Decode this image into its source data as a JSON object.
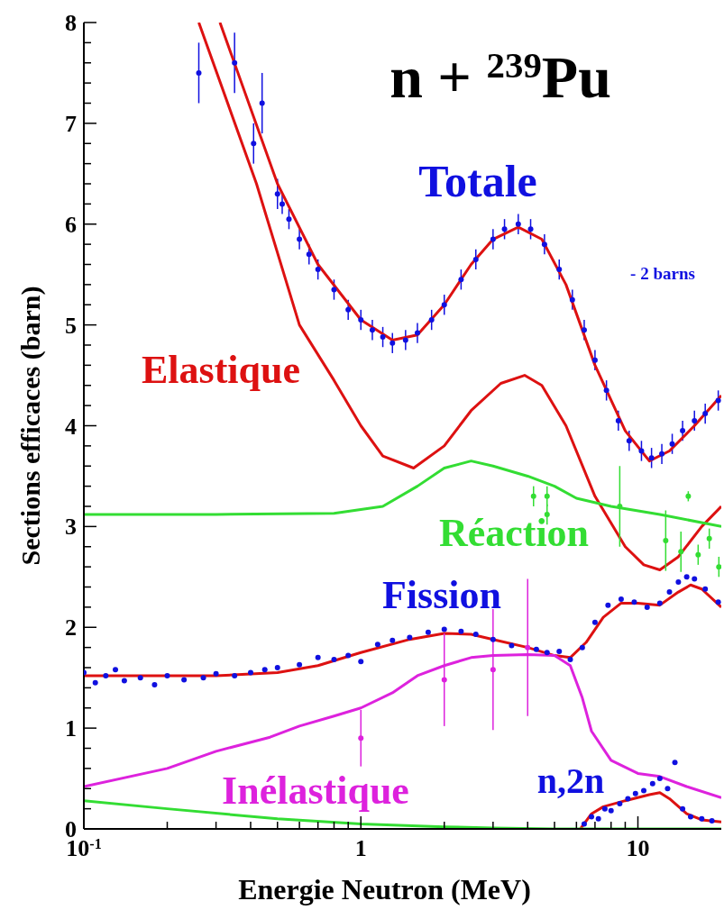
{
  "chart_data": {
    "type": "line",
    "title": "n + $^{239}$Pu",
    "xlabel": "Energie Neutron (MeV)",
    "ylabel": "Sections efficaces (barn)",
    "annotations": [
      "- 2 barns"
    ],
    "log": "x",
    "xlim": [
      0.1,
      20
    ],
    "ylim": [
      0,
      8
    ],
    "xticks": [
      {
        "value": 0.1,
        "label": "10$^{-1}$"
      },
      {
        "value": 0.2,
        "label": null
      },
      {
        "value": 0.3,
        "label": null
      },
      {
        "value": 0.4,
        "label": null
      },
      {
        "value": 0.5,
        "label": null
      },
      {
        "value": 0.6,
        "label": null
      },
      {
        "value": 0.7,
        "label": null
      },
      {
        "value": 0.8,
        "label": null
      },
      {
        "value": 0.9,
        "label": null
      },
      1,
      {
        "value": 2,
        "label": null
      },
      {
        "value": 3,
        "label": null
      },
      {
        "value": 4,
        "label": null
      },
      {
        "value": 5,
        "label": null
      },
      {
        "value": 6,
        "label": null
      },
      {
        "value": 7,
        "label": null
      },
      {
        "value": 8,
        "label": null
      },
      {
        "value": 9,
        "label": null
      },
      10
    ],
    "yticks": [
      0,
      {
        "value": 0.2,
        "label": null
      },
      {
        "value": 0.4,
        "label": null
      },
      {
        "value": 0.6,
        "label": null
      },
      {
        "value": 0.8,
        "label": null
      },
      1,
      {
        "value": 1.2,
        "label": null
      },
      {
        "value": 1.4,
        "label": null
      },
      {
        "value": 1.6,
        "label": null
      },
      {
        "value": 1.8,
        "label": null
      },
      2,
      {
        "value": 2.2,
        "label": null
      },
      {
        "value": 2.4,
        "label": null
      },
      {
        "value": 2.6,
        "label": null
      },
      {
        "value": 2.8,
        "label": null
      },
      3,
      {
        "value": 3.2,
        "label": null
      },
      {
        "value": 3.4,
        "label": null
      },
      {
        "value": 3.6,
        "label": null
      },
      {
        "value": 3.8,
        "label": null
      },
      4,
      {
        "value": 4.2,
        "label": null
      },
      {
        "value": 4.4,
        "label": null
      },
      {
        "value": 4.6,
        "label": null
      },
      {
        "value": 4.8,
        "label": null
      },
      5,
      {
        "value": 5.2,
        "label": null
      },
      {
        "value": 5.4,
        "label": null
      },
      {
        "value": 5.6,
        "label": null
      },
      {
        "value": 5.8,
        "label": null
      },
      6,
      {
        "value": 6.2,
        "label": null
      },
      {
        "value": 6.4,
        "label": null
      },
      {
        "value": 6.6,
        "label": null
      },
      {
        "value": 6.8,
        "label": null
      },
      7,
      {
        "value": 7.2,
        "label": null
      },
      {
        "value": 7.4,
        "label": null
      },
      {
        "value": 7.6,
        "label": null
      },
      {
        "value": 7.8,
        "label": null
      },
      8
    ],
    "series": [
      {
        "type": "scatter",
        "name": "Totale",
        "color": "#1010e0",
        "marker": "circle",
        "x": [
          0.26,
          0.35,
          0.41,
          0.44,
          0.5,
          0.52,
          0.55,
          0.6,
          0.65,
          0.7,
          0.8,
          0.9,
          1,
          1.1,
          1.2,
          1.3,
          1.45,
          1.6,
          1.8,
          2,
          2.3,
          2.6,
          3,
          3.3,
          3.7,
          4.1,
          4.6,
          5.2,
          5.8,
          6.4,
          7,
          7.7,
          8.5,
          9.3,
          10.3,
          11.2,
          12.2,
          13.3,
          14.5,
          16,
          17.5,
          19.5
        ],
        "values": [
          7.5,
          7.6,
          6.8,
          7.2,
          6.3,
          6.2,
          6.05,
          5.85,
          5.7,
          5.55,
          5.35,
          5.15,
          5.05,
          4.95,
          4.88,
          4.82,
          4.85,
          4.92,
          5.05,
          5.2,
          5.45,
          5.65,
          5.85,
          5.95,
          6,
          5.95,
          5.8,
          5.55,
          5.25,
          4.95,
          4.65,
          4.35,
          4.05,
          3.85,
          3.75,
          3.68,
          3.72,
          3.82,
          3.95,
          4.05,
          4.12,
          4.25
        ],
        "errors": [
          0.3,
          0.3,
          0.2,
          0.3,
          0.15,
          0.1,
          0.1,
          0.1,
          0.1,
          0.1,
          0.1,
          0.1,
          0.1,
          0.1,
          0.1,
          0.1,
          0.1,
          0.1,
          0.1,
          0.1,
          0.1,
          0.1,
          0.1,
          0.1,
          0.1,
          0.1,
          0.1,
          0.1,
          0.1,
          0.1,
          0.1,
          0.1,
          0.1,
          0.1,
          0.1,
          0.1,
          0.1,
          0.1,
          0.1,
          0.1,
          0.1,
          0.1
        ]
      },
      {
        "color": "#dd1111",
        "marker": "none",
        "x": [
          0.31,
          0.5,
          0.7,
          1,
          1.3,
          1.6,
          2,
          2.5,
          3,
          3.7,
          4.5,
          5.5,
          7,
          9,
          11,
          13,
          16,
          20
        ],
        "values": [
          8,
          6.4,
          5.6,
          5.05,
          4.85,
          4.9,
          5.2,
          5.6,
          5.85,
          5.97,
          5.85,
          5.4,
          4.6,
          3.95,
          3.65,
          3.75,
          4,
          4.3
        ]
      },
      {
        "name": "Elastique",
        "color": "#dd1111",
        "marker": "none",
        "x": [
          0.26,
          0.42,
          0.6,
          0.8,
          1,
          1.2,
          1.55,
          2,
          2.5,
          3.2,
          3.9,
          4.5,
          5.5,
          7,
          9,
          10.5,
          12,
          14,
          17,
          20
        ],
        "values": [
          8,
          6.4,
          5,
          4.45,
          4,
          3.7,
          3.58,
          3.8,
          4.15,
          4.42,
          4.5,
          4.4,
          4,
          3.3,
          2.8,
          2.62,
          2.57,
          2.7,
          3,
          3.2
        ]
      },
      {
        "name": "Réaction",
        "color": "#33dd33",
        "marker": "none",
        "x": [
          0.1,
          0.3,
          0.8,
          1.2,
          1.6,
          2,
          2.5,
          3,
          4,
          5,
          6,
          8,
          12,
          20
        ],
        "values": [
          3.12,
          3.12,
          3.13,
          3.2,
          3.4,
          3.58,
          3.65,
          3.6,
          3.5,
          3.4,
          3.28,
          3.2,
          3.12,
          3
        ]
      },
      {
        "type": "scatter",
        "color": "#33dd33",
        "marker": "circle",
        "x": [
          4.2,
          4.7,
          4.7,
          8.6,
          12.6,
          14.3,
          15.2,
          16.5,
          18.1,
          19.6
        ],
        "values": [
          3.3,
          3.3,
          3.12,
          3.2,
          2.86,
          2.75,
          3.3,
          2.72,
          2.88,
          2.6
        ],
        "errors": [
          0.1,
          0.1,
          0.1,
          0.4,
          0.3,
          0.2,
          0.05,
          0.1,
          0.1,
          0.1
        ]
      },
      {
        "type": "scatter",
        "name": "Fission",
        "color": "#1010e0",
        "marker": "circle",
        "x": [
          0.1,
          0.11,
          0.12,
          0.13,
          0.14,
          0.16,
          0.18,
          0.2,
          0.23,
          0.27,
          0.3,
          0.35,
          0.4,
          0.45,
          0.5,
          0.6,
          0.7,
          0.8,
          0.9,
          1,
          1.15,
          1.3,
          1.5,
          1.75,
          2,
          2.3,
          2.6,
          3,
          3.5,
          4.3,
          4.7,
          5.2,
          5.7,
          6.3,
          7,
          7.8,
          8.7,
          9.7,
          10.8,
          12,
          13,
          14,
          15,
          16,
          17.5,
          19.5
        ],
        "values": [
          1.55,
          1.45,
          1.52,
          1.58,
          1.47,
          1.5,
          1.43,
          1.52,
          1.48,
          1.5,
          1.54,
          1.52,
          1.55,
          1.58,
          1.6,
          1.63,
          1.7,
          1.68,
          1.72,
          1.66,
          1.83,
          1.87,
          1.9,
          1.95,
          1.98,
          1.96,
          1.93,
          1.88,
          1.82,
          1.78,
          1.75,
          1.76,
          1.68,
          1.8,
          2.05,
          2.22,
          2.28,
          2.25,
          2.2,
          2.24,
          2.35,
          2.45,
          2.5,
          2.48,
          2.38,
          2.25
        ]
      },
      {
        "color": "#dd1111",
        "marker": "none",
        "x": [
          0.1,
          0.3,
          0.5,
          0.7,
          1,
          1.5,
          2,
          2.5,
          3,
          4,
          5,
          5.7,
          6.5,
          7.5,
          8.7,
          10,
          12,
          14,
          15.5,
          17,
          20
        ],
        "values": [
          1.52,
          1.52,
          1.55,
          1.62,
          1.75,
          1.88,
          1.94,
          1.93,
          1.88,
          1.8,
          1.72,
          1.7,
          1.85,
          2.1,
          2.24,
          2.24,
          2.22,
          2.35,
          2.42,
          2.38,
          2.2
        ]
      },
      {
        "name": "Inélastique",
        "color": "#dd22dd",
        "marker": "none",
        "x": [
          0.1,
          0.2,
          0.3,
          0.47,
          0.6,
          0.8,
          1,
          1.3,
          1.6,
          2,
          2.5,
          3,
          4,
          5,
          5.7,
          6.3,
          6.8,
          8,
          10,
          12,
          15,
          20
        ],
        "values": [
          0.42,
          0.6,
          0.77,
          0.91,
          1.02,
          1.12,
          1.2,
          1.35,
          1.52,
          1.62,
          1.7,
          1.72,
          1.73,
          1.72,
          1.62,
          1.3,
          0.97,
          0.68,
          0.55,
          0.52,
          0.42,
          0.31
        ]
      },
      {
        "type": "scatter",
        "color": "#dd22dd",
        "marker": "circle",
        "x": [
          1,
          2,
          3,
          4
        ],
        "values": [
          0.9,
          1.48,
          1.58,
          1.8
        ],
        "errors": [
          0.28,
          0.46,
          0.6,
          0.68
        ]
      },
      {
        "type": "scatter",
        "name": "n,2n",
        "color": "#1010e0",
        "marker": "circle",
        "x": [
          6.4,
          6.8,
          7.2,
          7.6,
          8,
          8.6,
          9.2,
          9.8,
          10.5,
          11.3,
          12,
          12.8,
          13.6,
          14.5,
          15.5,
          17,
          18.5
        ],
        "values": [
          0.05,
          0.12,
          0.1,
          0.2,
          0.18,
          0.25,
          0.3,
          0.35,
          0.38,
          0.45,
          0.5,
          0.4,
          0.66,
          0.2,
          0.12,
          0.1,
          0.08
        ]
      },
      {
        "color": "#dd1111",
        "marker": "none",
        "x": [
          6.2,
          6.8,
          7.5,
          9,
          11,
          12,
          13,
          15,
          17,
          20
        ],
        "values": [
          0,
          0.15,
          0.22,
          0.28,
          0.34,
          0.36,
          0.3,
          0.15,
          0.09,
          0.07
        ]
      },
      {
        "color": "#33dd33",
        "marker": "none",
        "x": [
          0.1,
          0.2,
          0.5,
          1,
          2,
          3,
          5,
          20
        ],
        "values": [
          0.28,
          0.2,
          0.1,
          0.05,
          0.02,
          0.01,
          0,
          0
        ]
      }
    ]
  }
}
